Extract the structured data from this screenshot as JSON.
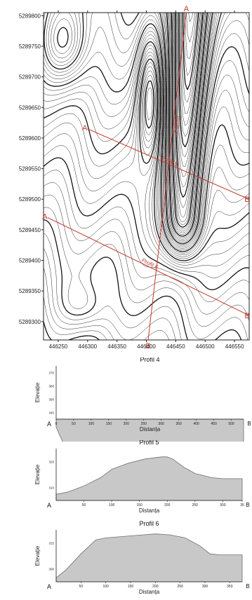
{
  "chart_data": [
    {
      "type": "contour-map",
      "x_ticks": [
        "446250",
        "446300",
        "446350",
        "446400",
        "446450",
        "446500",
        "446550"
      ],
      "y_ticks": [
        "5289800",
        "5289750",
        "5289700",
        "5289650",
        "5289600",
        "5289550",
        "5289500",
        "5289450",
        "5289400",
        "5289350",
        "5289300"
      ],
      "xlim": [
        446225,
        446575
      ],
      "ylim": [
        5289270,
        5289805
      ],
      "colors": {
        "contour": "#111111",
        "profile": "#c0392b"
      },
      "profiles": [
        {
          "name": "Profil 4",
          "start_label": "A",
          "end_label": "B",
          "start": [
            446468,
            5289805
          ],
          "end": [
            446403,
            5289270
          ]
        },
        {
          "name": "Profil 5",
          "start_label": "A",
          "end_label": "B",
          "start": [
            446300,
            5289615
          ],
          "end": [
            446575,
            5289500
          ]
        },
        {
          "name": "Profil 6",
          "start_label": "A",
          "end_label": "B",
          "start": [
            446232,
            5289470
          ],
          "end": [
            446575,
            5289310
          ]
        }
      ]
    },
    {
      "type": "area",
      "title": "Profil 4",
      "xlabel": "Distanța",
      "ylabel": "Elevație",
      "x_ticks": [
        "0",
        "50",
        "100",
        "150",
        "200",
        "250",
        "300",
        "350",
        "400",
        "450",
        "500"
      ],
      "y_ticks": [
        "370",
        "380",
        "390",
        "340"
      ],
      "start_label": "A",
      "end_label": "B",
      "xlim": [
        0,
        535
      ],
      "ylim": [
        365,
        345
      ],
      "x": [
        0,
        20,
        50,
        100,
        150,
        200,
        250,
        300,
        350,
        400,
        450,
        500,
        535
      ],
      "y": [
        368,
        374,
        378,
        380,
        381,
        382,
        383,
        384,
        385,
        386,
        387,
        388,
        389
      ]
    },
    {
      "type": "area",
      "title": "Profil 5",
      "xlabel": "Distanța",
      "ylabel": "Elevație",
      "x_ticks": [
        "50",
        "100",
        "150",
        "200",
        "250",
        "300",
        "35"
      ],
      "y_ticks": [
        "320",
        "310"
      ],
      "start_label": "A",
      "end_label": "B",
      "xlim": [
        0,
        335
      ],
      "ylim": [
        300,
        325
      ],
      "x": [
        0,
        20,
        50,
        80,
        100,
        130,
        160,
        190,
        200,
        210,
        230,
        250,
        280,
        300,
        335
      ],
      "y": [
        303,
        304,
        307,
        311,
        315,
        318,
        320,
        321,
        321,
        320,
        316,
        313,
        311,
        310.5,
        310.5
      ]
    },
    {
      "type": "area",
      "title": "Profil 6",
      "xlabel": "Distanța",
      "ylabel": "Elevație",
      "x_ticks": [
        "50",
        "100",
        "150",
        "200",
        "250",
        "300",
        "350"
      ],
      "y_ticks": [
        "315",
        "300"
      ],
      "start_label": "A",
      "end_label": "B",
      "xlim": [
        0,
        375
      ],
      "ylim": [
        300,
        326
      ],
      "x": [
        0,
        20,
        50,
        80,
        100,
        150,
        200,
        230,
        260,
        290,
        310,
        330,
        375
      ],
      "y": [
        302,
        306,
        314,
        321,
        322,
        323,
        324,
        323.5,
        322,
        318,
        314,
        313.5,
        313.5
      ]
    }
  ]
}
